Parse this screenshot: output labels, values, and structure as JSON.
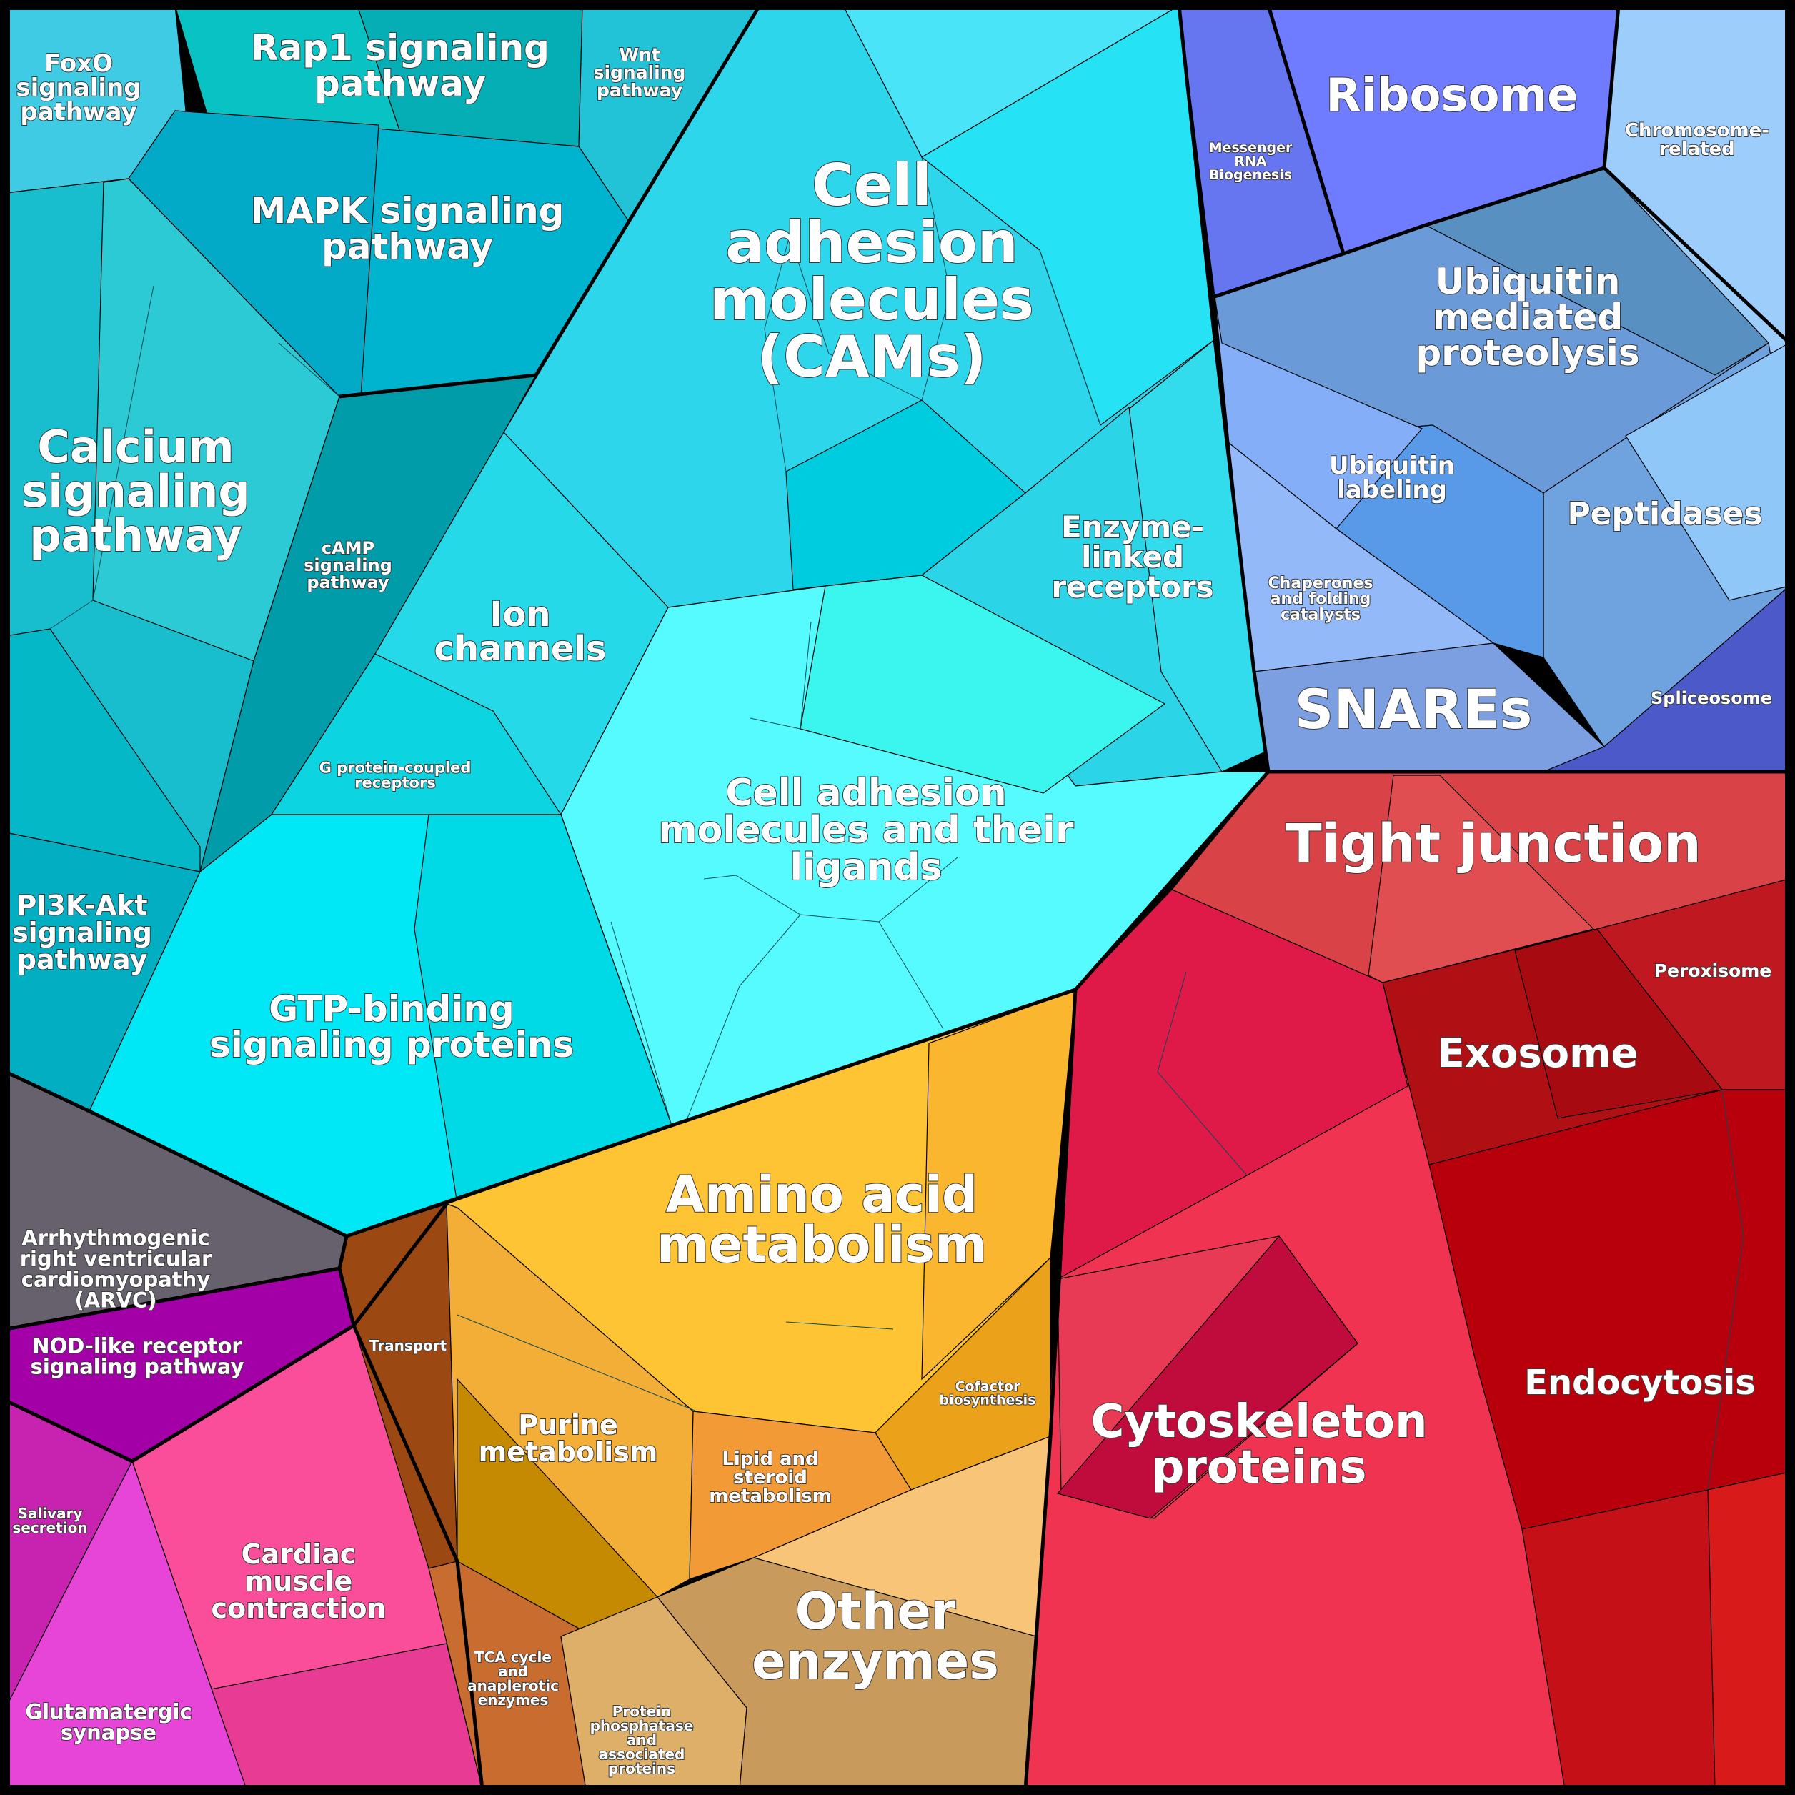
{
  "groups": {
    "signaling": {
      "color": "#1fc8dc"
    },
    "membrane": {
      "color": "#7fa8f0"
    },
    "cell_junction": {
      "color": "#e0304a"
    },
    "metabolism": {
      "color": "#f5b52e"
    },
    "misc": {
      "color": "#6a6470"
    }
  },
  "labels": {
    "foxo": "FoxO signaling pathway",
    "rap1": "Rap1 signaling pathway",
    "wnt": "Wnt signaling pathway",
    "mapk": "MAPK signaling pathway",
    "calcium": "Calcium signaling pathway",
    "camp": "cAMP signaling pathway",
    "pi3k": "PI3K-Akt signaling pathway",
    "cams": "Cell adhesion molecules (CAMs)",
    "ion": "Ion channels",
    "gpcr": "G protein-coupled receptors",
    "enzyme_linked": "Enzyme-linked receptors",
    "cams_ligands": "Cell adhesion molecules and their ligands",
    "gtp": "GTP-binding signaling proteins",
    "mrna": "Messenger RNA Biogenesis",
    "ribosome": "Ribosome",
    "chromosome": "Chromosome-related",
    "ubiquitin_prot": "Ubiquitin mediated proteolysis",
    "ubiquitin_lab": "Ubiquitin labeling",
    "peptidases": "Peptidases",
    "chaperones": "Chaperones and folding catalysts",
    "snares": "SNAREs",
    "spliceosome": "Spliceosome",
    "tight": "Tight junction",
    "peroxisome": "Peroxisome",
    "exosome": "Exosome",
    "endocytosis": "Endocytosis",
    "cytoskeleton": "Cytoskeleton proteins",
    "arvc": "Arrhythmogenic right ventricular cardiomyopathy (ARVC)",
    "nod": "NOD-like receptor signaling pathway",
    "salivary": "Salivary secretion",
    "cardiac": "Cardiac muscle contraction",
    "glutamatergic": "Glutamatergic synapse",
    "transport": "Transport",
    "amino": "Amino acid metabolism",
    "purine": "Purine metabolism",
    "lipid": "Lipid and steroid metabolism",
    "cofactor": "Cofactor biosynthesis",
    "tca": "TCA cycle and anaplerotic enzymes",
    "phosphatase": "Protein phosphatase and associated proteins",
    "other_enzymes": "Other enzymes"
  },
  "label_lines": {
    "foxo": [
      "FoxO",
      "signaling",
      "pathway"
    ],
    "rap1": [
      "Rap1 signaling",
      "pathway"
    ],
    "wnt": [
      "Wnt",
      "signaling",
      "pathway"
    ],
    "mapk": [
      "MAPK signaling",
      "pathway"
    ],
    "calcium": [
      "Calcium",
      "signaling",
      "pathway"
    ],
    "camp": [
      "cAMP",
      "signaling",
      "pathway"
    ],
    "pi3k": [
      "PI3K-Akt",
      "signaling",
      "pathway"
    ],
    "cams": [
      "Cell",
      "adhesion",
      "molecules",
      "(CAMs)"
    ],
    "ion": [
      "Ion",
      "channels"
    ],
    "gpcr": [
      "G protein-coupled",
      "receptors"
    ],
    "enzyme_linked": [
      "Enzyme-",
      "linked",
      "receptors"
    ],
    "cams_ligands": [
      "Cell adhesion",
      "molecules and their",
      "ligands"
    ],
    "gtp": [
      "GTP-binding",
      "signaling proteins"
    ],
    "mrna": [
      "Messenger",
      "RNA",
      "Biogenesis"
    ],
    "ribosome": [
      "Ribosome"
    ],
    "chromosome": [
      "Chromosome-",
      "related"
    ],
    "ubiquitin_prot": [
      "Ubiquitin",
      "mediated",
      "proteolysis"
    ],
    "ubiquitin_lab": [
      "Ubiquitin",
      "labeling"
    ],
    "peptidases": [
      "Peptidases"
    ],
    "chaperones": [
      "Chaperones",
      "and folding",
      "catalysts"
    ],
    "snares": [
      "SNAREs"
    ],
    "spliceosome": [
      "Spliceosome"
    ],
    "tight": [
      "Tight junction"
    ],
    "peroxisome": [
      "Peroxisome"
    ],
    "exosome": [
      "Exosome"
    ],
    "endocytosis": [
      "Endocytosis"
    ],
    "cytoskeleton": [
      "Cytoskeleton",
      "proteins"
    ],
    "arvc": [
      "Arrhythmogenic",
      "right ventricular",
      "cardiomyopathy",
      "(ARVC)"
    ],
    "nod": [
      "NOD-like receptor",
      "signaling pathway"
    ],
    "salivary": [
      "Salivary",
      "secretion"
    ],
    "cardiac": [
      "Cardiac",
      "muscle",
      "contraction"
    ],
    "glutamatergic": [
      "Glutamatergic",
      "synapse"
    ],
    "transport": [
      "Transport"
    ],
    "amino": [
      "Amino acid",
      "metabolism"
    ],
    "purine": [
      "Purine",
      "metabolism"
    ],
    "lipid": [
      "Lipid and",
      "steroid",
      "metabolism"
    ],
    "cofactor": [
      "Cofactor",
      "biosynthesis"
    ],
    "tca": [
      "TCA cycle",
      "and",
      "anaplerotic",
      "enzymes"
    ],
    "phosphatase": [
      "Protein",
      "phosphatase",
      "and",
      "associated",
      "proteins"
    ],
    "other_enzymes": [
      "Other",
      "enzymes"
    ]
  }
}
